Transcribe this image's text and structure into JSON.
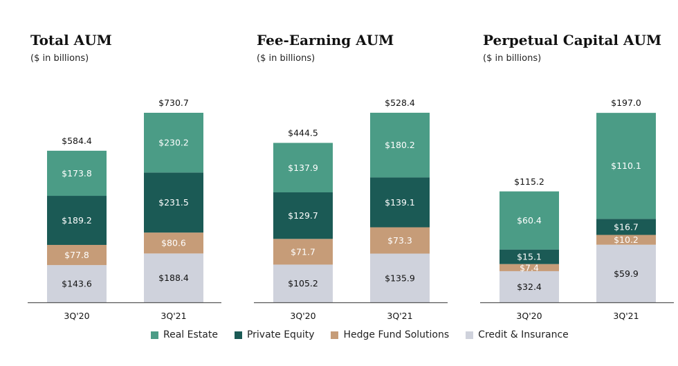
{
  "colors": {
    "Real Estate": "#4b9c86",
    "Private Equity": "#1b5a55",
    "Hedge Fund Solutions": "#c69c78",
    "Credit & Insurance": "#cfd2dc"
  },
  "legend": [
    "Real Estate",
    "Private Equity",
    "Hedge Fund Solutions",
    "Credit & Insurance"
  ],
  "chart_data": [
    {
      "type": "bar",
      "stacked": true,
      "title": "Total AUM",
      "subtitle": "($ in billions)",
      "categories": [
        "3Q'20",
        "3Q'21"
      ],
      "series": [
        {
          "name": "Credit & Insurance",
          "values": [
            143.6,
            188.4
          ],
          "labels": [
            "$143.6",
            "$188.4"
          ]
        },
        {
          "name": "Hedge Fund Solutions",
          "values": [
            77.8,
            80.6
          ],
          "labels": [
            "$77.8",
            "$80.6"
          ]
        },
        {
          "name": "Private Equity",
          "values": [
            189.2,
            231.5
          ],
          "labels": [
            "$189.2",
            "$231.5"
          ]
        },
        {
          "name": "Real Estate",
          "values": [
            173.8,
            230.2
          ],
          "labels": [
            "$173.8",
            "$230.2"
          ]
        }
      ],
      "totals": [
        584.4,
        730.7
      ],
      "total_labels": [
        "$584.4",
        "$730.7"
      ],
      "ylim": [
        0,
        730.7
      ]
    },
    {
      "type": "bar",
      "stacked": true,
      "title": "Fee-Earning AUM",
      "subtitle": "($ in billions)",
      "categories": [
        "3Q'20",
        "3Q'21"
      ],
      "series": [
        {
          "name": "Credit & Insurance",
          "values": [
            105.2,
            135.9
          ],
          "labels": [
            "$105.2",
            "$135.9"
          ]
        },
        {
          "name": "Hedge Fund Solutions",
          "values": [
            71.7,
            73.3
          ],
          "labels": [
            "$71.7",
            "$73.3"
          ]
        },
        {
          "name": "Private Equity",
          "values": [
            129.7,
            139.1
          ],
          "labels": [
            "$129.7",
            "$139.1"
          ]
        },
        {
          "name": "Real Estate",
          "values": [
            137.9,
            180.2
          ],
          "labels": [
            "$137.9",
            "$180.2"
          ]
        }
      ],
      "totals": [
        444.5,
        528.4
      ],
      "total_labels": [
        "$444.5",
        "$528.4"
      ],
      "ylim": [
        0,
        528.4
      ]
    },
    {
      "type": "bar",
      "stacked": true,
      "title": "Perpetual Capital AUM",
      "subtitle": "($ in billions)",
      "categories": [
        "3Q'20",
        "3Q'21"
      ],
      "series": [
        {
          "name": "Credit & Insurance",
          "values": [
            32.4,
            59.9
          ],
          "labels": [
            "$32.4",
            "$59.9"
          ]
        },
        {
          "name": "Hedge Fund Solutions",
          "values": [
            7.4,
            10.2
          ],
          "labels": [
            "$7.4",
            "$10.2"
          ]
        },
        {
          "name": "Private Equity",
          "values": [
            15.1,
            16.7
          ],
          "labels": [
            "$15.1",
            "$16.7"
          ]
        },
        {
          "name": "Real Estate",
          "values": [
            60.4,
            110.1
          ],
          "labels": [
            "$60.4",
            "$110.1"
          ]
        }
      ],
      "totals": [
        115.2,
        197.0
      ],
      "total_labels": [
        "$115.2",
        "$197.0"
      ],
      "ylim": [
        0,
        197.0
      ]
    }
  ]
}
